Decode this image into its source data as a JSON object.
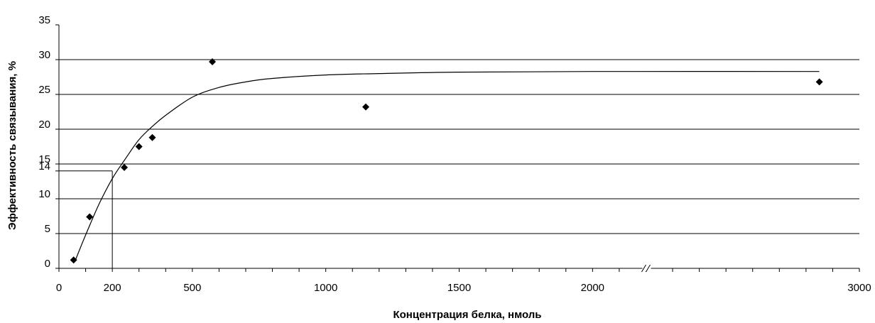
{
  "chart_data": {
    "type": "scatter",
    "xlabel": "Концентрация белка, нмоль",
    "ylabel": "Эффективность связывания, %",
    "xlim": [
      0,
      3000
    ],
    "ylim": [
      0,
      35
    ],
    "x_ticks": [
      {
        "value": 0,
        "label": "0"
      },
      {
        "value": 200,
        "label": "200"
      },
      {
        "value": 500,
        "label": "500"
      },
      {
        "value": 1000,
        "label": "1000"
      },
      {
        "value": 1500,
        "label": "1500"
      },
      {
        "value": 2000,
        "label": "2000"
      },
      {
        "value": 3000,
        "label": "3000"
      }
    ],
    "y_ticks": [
      {
        "value": 0,
        "label": "0"
      },
      {
        "value": 5,
        "label": "5"
      },
      {
        "value": 10,
        "label": "10"
      },
      {
        "value": 14,
        "label": "14"
      },
      {
        "value": 15,
        "label": "15"
      },
      {
        "value": 20,
        "label": "20"
      },
      {
        "value": 25,
        "label": "25"
      },
      {
        "value": 30,
        "label": "30"
      },
      {
        "value": 35,
        "label": "35"
      }
    ],
    "grid_y": [
      5,
      10,
      15,
      20,
      25,
      30
    ],
    "points": [
      {
        "x": 55,
        "y": 1.2
      },
      {
        "x": 115,
        "y": 7.4
      },
      {
        "x": 245,
        "y": 14.5
      },
      {
        "x": 300,
        "y": 17.5
      },
      {
        "x": 350,
        "y": 18.8
      },
      {
        "x": 575,
        "y": 29.7
      },
      {
        "x": 1150,
        "y": 23.2
      },
      {
        "x": 2850,
        "y": 26.8
      }
    ],
    "fit_curve": [
      {
        "x": 60,
        "y": 1.0
      },
      {
        "x": 100,
        "y": 4.8
      },
      {
        "x": 150,
        "y": 9.2
      },
      {
        "x": 200,
        "y": 12.9
      },
      {
        "x": 250,
        "y": 15.8
      },
      {
        "x": 300,
        "y": 18.5
      },
      {
        "x": 350,
        "y": 20.4
      },
      {
        "x": 400,
        "y": 22.0
      },
      {
        "x": 500,
        "y": 24.6
      },
      {
        "x": 600,
        "y": 26.0
      },
      {
        "x": 700,
        "y": 26.8
      },
      {
        "x": 800,
        "y": 27.3
      },
      {
        "x": 1000,
        "y": 27.8
      },
      {
        "x": 1200,
        "y": 28.0
      },
      {
        "x": 1500,
        "y": 28.2
      },
      {
        "x": 2000,
        "y": 28.3
      },
      {
        "x": 2850,
        "y": 28.3
      }
    ],
    "reference_point": {
      "x": 200,
      "y": 14
    },
    "axis_break": {
      "x": 2200,
      "mark": "//"
    },
    "grid": true,
    "legend": "none"
  }
}
